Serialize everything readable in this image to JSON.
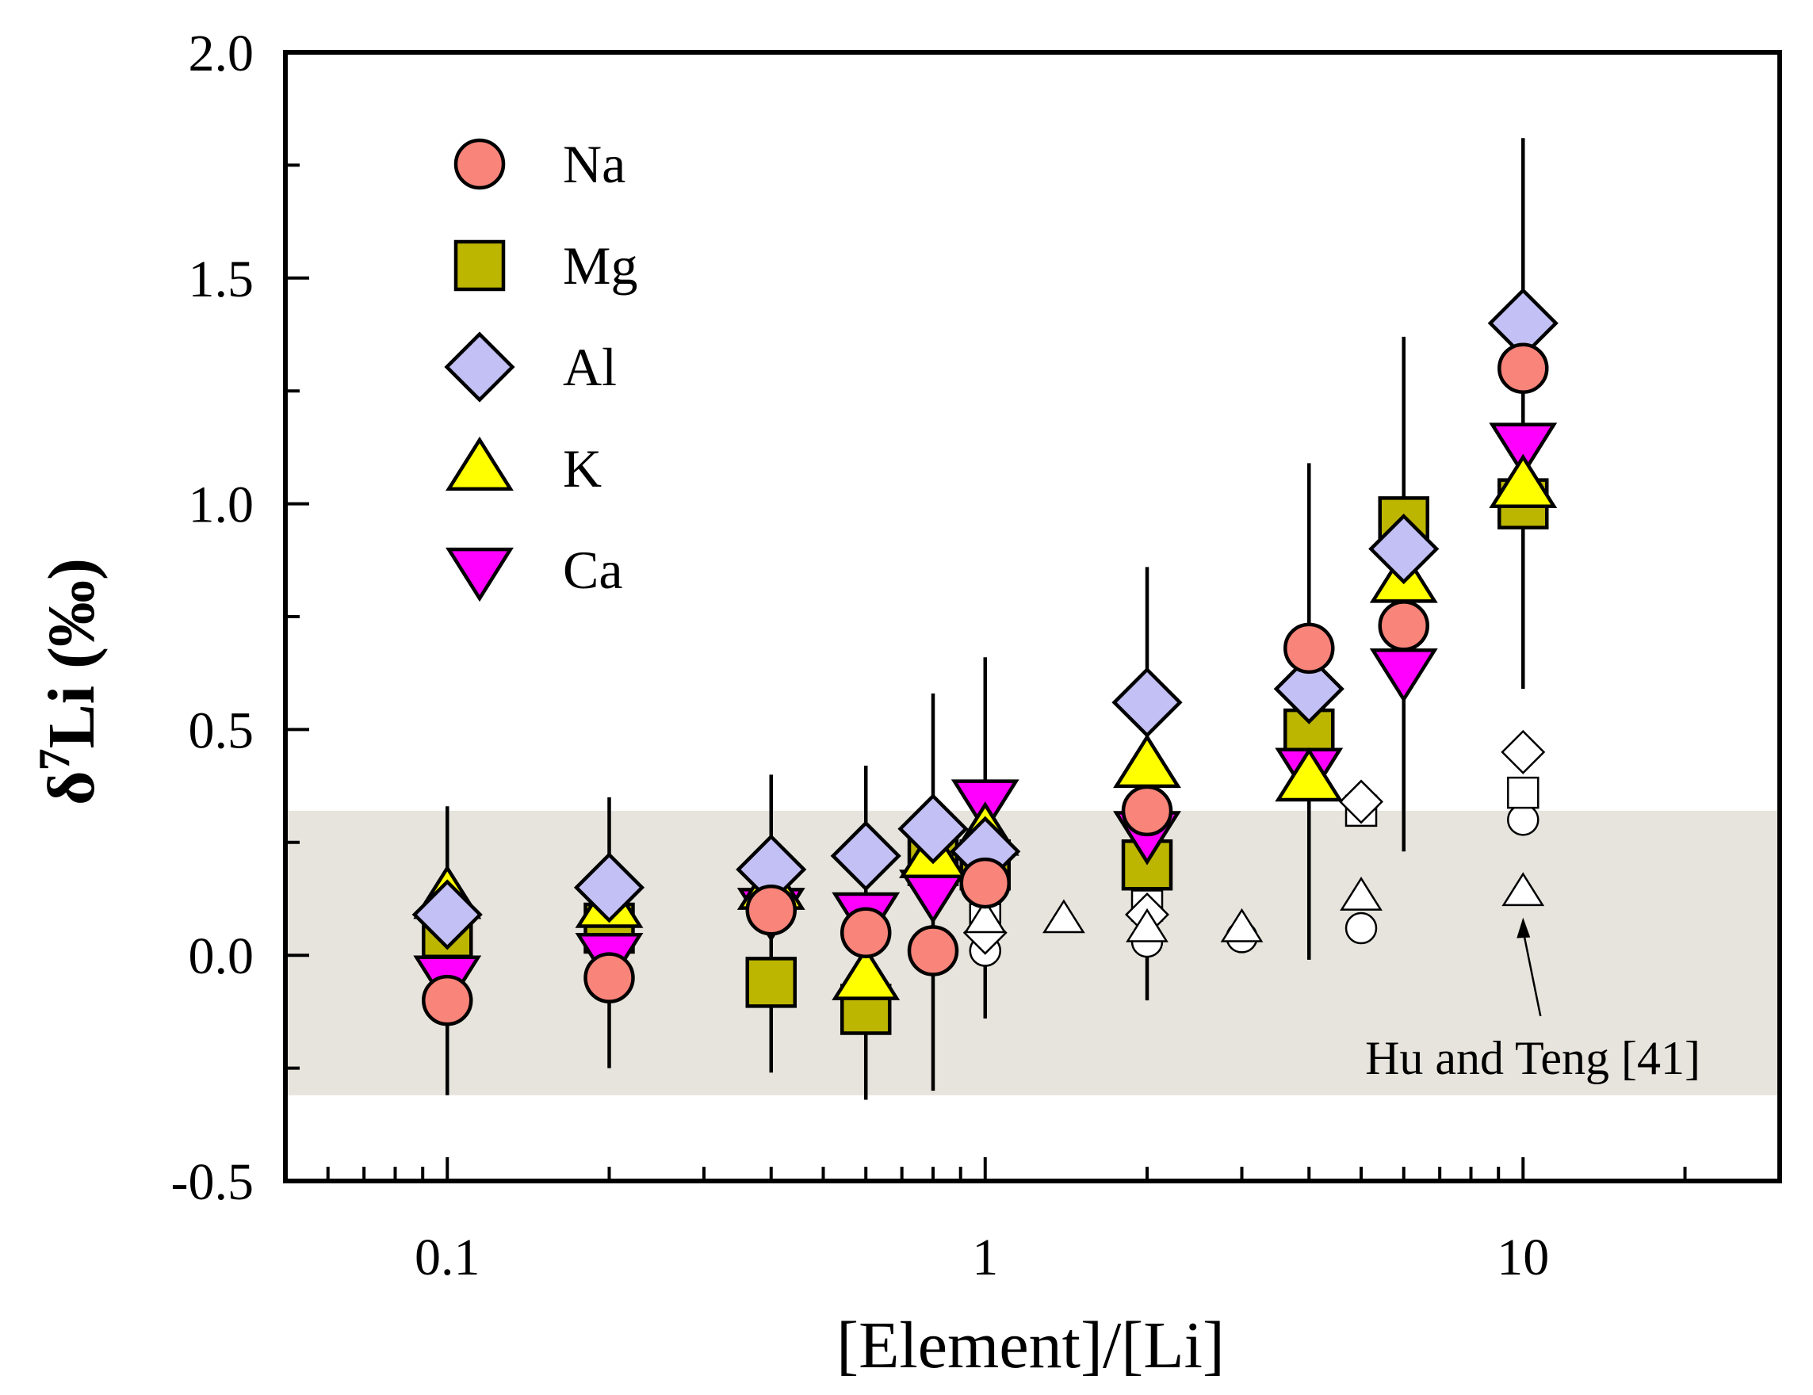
{
  "chart_data": {
    "type": "scatter",
    "xscale": "log",
    "xlim": [
      0.05,
      30
    ],
    "ylim": [
      -0.5,
      2.0
    ],
    "xlabel": "[Element]/[Li]",
    "ylabel_prefix": "δ",
    "ylabel_sup": "7",
    "ylabel_rest": "Li (‰)",
    "x_ticks": [
      {
        "value": 0.1,
        "label": "0.1"
      },
      {
        "value": 1,
        "label": "1"
      },
      {
        "value": 10,
        "label": "10"
      }
    ],
    "y_ticks": [
      {
        "value": -0.5,
        "label": "-0.5"
      },
      {
        "value": 0.0,
        "label": "0.0"
      },
      {
        "value": 0.5,
        "label": "0.5"
      },
      {
        "value": 1.0,
        "label": "1.0"
      },
      {
        "value": 1.5,
        "label": "1.5"
      },
      {
        "value": 2.0,
        "label": "2.0"
      }
    ],
    "band": {
      "ymin": -0.31,
      "ymax": 0.32,
      "color": "#e6e4dc"
    },
    "annotation": {
      "text": "Hu and Teng [41]",
      "arrow_to": [
        10,
        0.08
      ]
    },
    "error_bars": [
      {
        "x": 0.1,
        "center": 0.01,
        "err": 0.32
      },
      {
        "x": 0.2,
        "center": 0.05,
        "err": 0.3
      },
      {
        "x": 0.4,
        "center": 0.07,
        "err": 0.33
      },
      {
        "x": 0.6,
        "center": 0.05,
        "err": 0.37
      },
      {
        "x": 0.8,
        "center": 0.14,
        "err": 0.44
      },
      {
        "x": 1.0,
        "center": 0.26,
        "err": 0.4
      },
      {
        "x": 2.0,
        "center": 0.38,
        "err": 0.48
      },
      {
        "x": 4.0,
        "center": 0.54,
        "err": 0.55
      },
      {
        "x": 6.0,
        "center": 0.8,
        "err": 0.57
      },
      {
        "x": 10.0,
        "center": 1.2,
        "err": 0.61
      }
    ],
    "series": [
      {
        "name": "Na",
        "marker": "circle",
        "color": "#f8847a",
        "x": [
          0.1,
          0.2,
          0.4,
          0.6,
          0.8,
          1,
          2,
          4,
          6,
          10
        ],
        "y": [
          -0.1,
          -0.05,
          0.1,
          0.05,
          0.01,
          0.16,
          0.32,
          0.68,
          0.73,
          1.3
        ]
      },
      {
        "name": "Mg",
        "marker": "square",
        "color": "#bdb600",
        "x": [
          0.1,
          0.2,
          0.4,
          0.6,
          0.8,
          1,
          2,
          4,
          6,
          10
        ],
        "y": [
          0.05,
          0.06,
          -0.06,
          -0.12,
          0.21,
          0.2,
          0.2,
          0.49,
          0.96,
          1.0
        ]
      },
      {
        "name": "Al",
        "marker": "diamond",
        "color": "#c2c0f4",
        "x": [
          0.1,
          0.2,
          0.4,
          0.6,
          0.8,
          1,
          2,
          4,
          6,
          10
        ],
        "y": [
          0.09,
          0.15,
          0.19,
          0.22,
          0.28,
          0.23,
          0.56,
          0.59,
          0.9,
          1.4
        ]
      },
      {
        "name": "K",
        "marker": "triangle-up",
        "color": "#ffff00",
        "x": [
          0.1,
          0.2,
          0.4,
          0.6,
          0.8,
          1,
          2,
          4,
          6,
          10
        ],
        "y": [
          0.13,
          0.11,
          0.15,
          -0.05,
          0.22,
          0.27,
          0.42,
          0.39,
          0.83,
          1.04
        ]
      },
      {
        "name": "Ca",
        "marker": "triangle-down",
        "color": "#ff00ff",
        "x": [
          0.1,
          0.2,
          0.4,
          0.6,
          0.8,
          1,
          2,
          4,
          6,
          10
        ],
        "y": [
          -0.05,
          0.0,
          0.1,
          0.09,
          0.14,
          0.34,
          0.27,
          0.41,
          0.63,
          1.13
        ]
      }
    ],
    "reference_series": [
      {
        "name": "Na (Hu and Teng)",
        "marker": "circle",
        "x": [
          1,
          2,
          3,
          5,
          10
        ],
        "y": [
          0.01,
          0.03,
          0.04,
          0.06,
          0.3
        ]
      },
      {
        "name": "Mg (Hu and Teng)",
        "marker": "square",
        "x": [
          1,
          2,
          5,
          10
        ],
        "y": [
          0.08,
          0.11,
          0.32,
          0.36
        ]
      },
      {
        "name": "Al (Hu and Teng)",
        "marker": "diamond",
        "x": [
          1,
          2,
          5,
          10
        ],
        "y": [
          0.05,
          0.09,
          0.34,
          0.45
        ]
      },
      {
        "name": "K (Hu and Teng)",
        "marker": "triangle-up",
        "x": [
          1,
          1.4,
          2,
          3,
          5,
          10
        ],
        "y": [
          0.08,
          0.08,
          0.06,
          0.06,
          0.13,
          0.14
        ]
      }
    ]
  }
}
